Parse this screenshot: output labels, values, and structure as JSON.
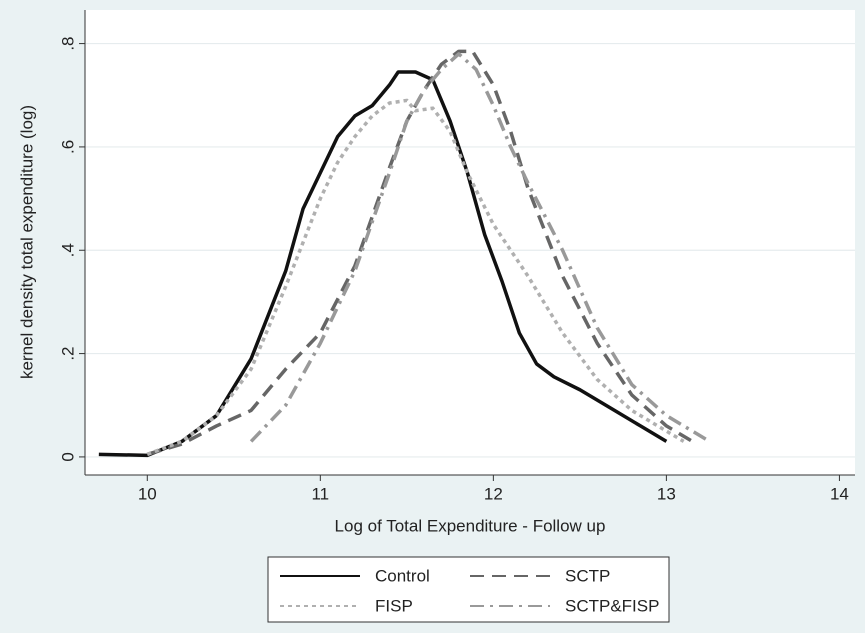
{
  "chart_data": {
    "type": "line",
    "x_label": "Log of Total Expenditure - Follow up",
    "y_label": "kernel density total expenditure (log)",
    "xlim": [
      9.64,
      14.09
    ],
    "ylim": [
      -0.035,
      0.865
    ],
    "xticks": [
      10,
      11,
      12,
      13,
      14
    ],
    "yticks": [
      0,
      {
        "value": 0.2,
        "label": ".2"
      },
      {
        "value": 0.4,
        "label": ".4"
      },
      {
        "value": 0.6,
        "label": ".6"
      },
      {
        "value": 0.8,
        "label": ".8"
      }
    ],
    "grid": true,
    "series": [
      {
        "name": "Control",
        "color": "#111111",
        "line_style": "solid",
        "x": [
          9.72,
          10.0,
          10.2,
          10.4,
          10.6,
          10.8,
          10.9,
          11.0,
          11.1,
          11.2,
          11.3,
          11.4,
          11.45,
          11.55,
          11.65,
          11.75,
          11.85,
          11.95,
          12.05,
          12.15,
          12.25,
          12.35,
          12.5,
          12.7,
          12.85,
          13.0
        ],
        "values": [
          0.005,
          0.003,
          0.03,
          0.08,
          0.19,
          0.36,
          0.48,
          0.55,
          0.62,
          0.66,
          0.68,
          0.72,
          0.745,
          0.745,
          0.73,
          0.65,
          0.55,
          0.43,
          0.34,
          0.24,
          0.18,
          0.155,
          0.13,
          0.09,
          0.06,
          0.03
        ]
      },
      {
        "name": "SCTP",
        "color": "#666666",
        "line_style": "dashed",
        "x": [
          10.0,
          10.2,
          10.4,
          10.6,
          10.8,
          11.0,
          11.2,
          11.4,
          11.5,
          11.6,
          11.7,
          11.8,
          11.88,
          12.0,
          12.1,
          12.2,
          12.4,
          12.6,
          12.8,
          13.0,
          13.15
        ],
        "values": [
          0.005,
          0.025,
          0.06,
          0.09,
          0.17,
          0.24,
          0.37,
          0.56,
          0.65,
          0.71,
          0.76,
          0.785,
          0.785,
          0.72,
          0.63,
          0.52,
          0.35,
          0.22,
          0.12,
          0.06,
          0.03
        ]
      },
      {
        "name": "FISP",
        "color": "#b0b0b0",
        "line_style": "dotted",
        "x": [
          10.0,
          10.2,
          10.4,
          10.6,
          10.8,
          11.0,
          11.1,
          11.2,
          11.3,
          11.4,
          11.5,
          11.55,
          11.65,
          11.75,
          11.85,
          12.0,
          12.2,
          12.4,
          12.6,
          12.8,
          13.0,
          13.1
        ],
        "values": [
          0.005,
          0.03,
          0.08,
          0.17,
          0.33,
          0.5,
          0.57,
          0.62,
          0.66,
          0.685,
          0.69,
          0.67,
          0.675,
          0.63,
          0.55,
          0.45,
          0.35,
          0.24,
          0.15,
          0.09,
          0.05,
          0.03
        ]
      },
      {
        "name": "SCTP&FISP",
        "color": "#999999",
        "line_style": "dashdot",
        "x": [
          10.6,
          10.8,
          11.0,
          11.2,
          11.4,
          11.5,
          11.6,
          11.7,
          11.8,
          11.9,
          12.0,
          12.1,
          12.2,
          12.4,
          12.6,
          12.8,
          13.0,
          13.25
        ],
        "values": [
          0.03,
          0.1,
          0.22,
          0.36,
          0.55,
          0.65,
          0.71,
          0.75,
          0.78,
          0.75,
          0.68,
          0.6,
          0.53,
          0.4,
          0.25,
          0.14,
          0.08,
          0.03
        ]
      }
    ]
  }
}
